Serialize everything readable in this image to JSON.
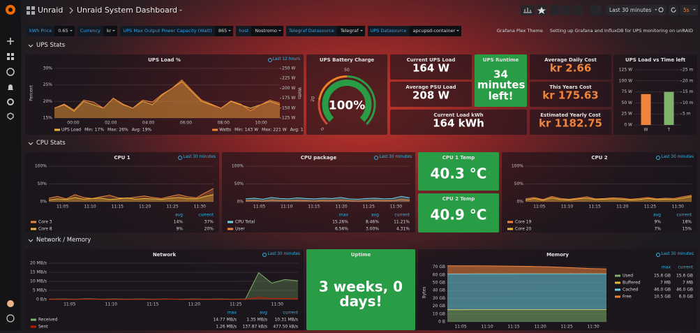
{
  "header": {
    "folder": "Unraid",
    "title": "Unraid System Dashboard",
    "time_range": "Last 30 minutes",
    "refresh": "5s"
  },
  "variables": [
    {
      "label": "kWh Price",
      "value": "0.65"
    },
    {
      "label": "Currency",
      "value": "kr"
    },
    {
      "label": "UPS Max Output Power Capacity (Watt)",
      "value": "865"
    },
    {
      "label": "host",
      "value": "Nostromo"
    },
    {
      "label": "Telegraf Datasource",
      "value": "Telegraf"
    },
    {
      "label": "UPS Datasource",
      "value": "apcupsd-container"
    }
  ],
  "links": [
    "Grafana Plex Theme",
    "Setting up Grafana and InfluxDB for UPS monitoring on unRAID"
  ],
  "rows": [
    "UPS Stats",
    "CPU Stats",
    "Network / Memory"
  ],
  "panels": {
    "ups_load": {
      "title": "UPS Load %",
      "info": "Last 12 hours",
      "y_label": "Percent",
      "y2_label": "Watts",
      "fill": true,
      "ylim": [
        15,
        30
      ],
      "yticks": [
        {
          "value": 30,
          "label": "30%"
        },
        {
          "value": 25,
          "label": "25%"
        },
        {
          "value": 20,
          "label": "20%"
        },
        {
          "value": 15,
          "label": "15%"
        }
      ],
      "y2lim": [
        125,
        250
      ],
      "y2ticks": [
        {
          "value": 250,
          "label": "250 W"
        },
        {
          "value": 225,
          "label": "225 W"
        },
        {
          "value": 200,
          "label": "200 W"
        },
        {
          "value": 175,
          "label": "175 W"
        },
        {
          "value": 150,
          "label": "150 W"
        },
        {
          "value": 125,
          "label": "125 W"
        }
      ],
      "xticks": [
        "00:00",
        "02:00",
        "04:00",
        "06:00",
        "08:00",
        "10:00"
      ],
      "series": [
        {
          "name": "UPS Load",
          "color": "#eab839",
          "stats": [
            "Min: 17%",
            "Max: 26%",
            "Avg: 19%"
          ],
          "values": [
            18,
            19,
            17,
            20,
            19,
            18,
            21,
            19,
            18,
            20,
            19,
            22,
            24,
            26,
            23,
            20,
            19,
            18,
            20,
            19,
            18,
            19,
            20,
            19
          ]
        },
        {
          "name": "Watts",
          "color": "#ef843c",
          "axis": "y2",
          "stats": [
            "Min: 143 W",
            "Max: 221 W",
            "Avg: 167 W"
          ],
          "values": [
            150,
            160,
            145,
            170,
            165,
            150,
            175,
            160,
            150,
            170,
            165,
            185,
            200,
            221,
            195,
            170,
            160,
            150,
            168,
            160,
            143,
            158,
            170,
            162
          ]
        }
      ]
    },
    "battery": {
      "title": "UPS Battery Charge",
      "min": 0,
      "max": 100,
      "value": 100,
      "value_label": "100%",
      "ticks": [
        0,
        20,
        50
      ],
      "threshold_colors": [
        "#d44a3a",
        "#ed8128",
        "#299c46"
      ]
    },
    "current_load": {
      "title": "Current UPS Load",
      "value": "164 W",
      "color": "#ffffff"
    },
    "avg_psu": {
      "title": "Average PSU Load",
      "value": "208 W",
      "color": "#ffffff"
    },
    "runtime": {
      "title": "UPS Runtime",
      "value": "34 minutes left!",
      "color": "#ffffff",
      "background": "#299c46"
    },
    "load_kwh": {
      "title": "Current Load kWh",
      "value": "164 kWh",
      "color": "#ffffff"
    },
    "daily_cost": {
      "title": "Average Daily Cost",
      "value": "kr  2.66",
      "color": "#ef843c"
    },
    "year_cost": {
      "title": "This Years Cost",
      "value": "kr  175.63",
      "color": "#ef843c"
    },
    "est_cost": {
      "title": "Estimated Yearly Cost",
      "value": "kr  1182.75",
      "color": "#ef843c"
    },
    "ups_vs_time": {
      "title": "UPS Load vs Time left",
      "ylim": [
        0,
        125
      ],
      "yticks": [
        {
          "value": 125,
          "label": "125 W"
        },
        {
          "value": 100,
          "label": "100 W"
        },
        {
          "value": 75,
          "label": "75 W"
        },
        {
          "value": 50,
          "label": "50 W"
        },
        {
          "value": 25,
          "label": "25 W"
        },
        {
          "value": 0,
          "label": "0 W"
        }
      ],
      "y2lim": [
        0,
        25
      ],
      "y2ticks": [
        {
          "value": 25,
          "label": "25 m"
        },
        {
          "value": 20,
          "label": "20 m"
        },
        {
          "value": 15,
          "label": "15 m"
        },
        {
          "value": 10,
          "label": "10 m"
        },
        {
          "value": 5,
          "label": "5 m"
        }
      ],
      "bars": [
        {
          "category": "W",
          "value": 70,
          "color": "#ef843c"
        },
        {
          "category": "T",
          "value": 15,
          "color": "#7eb26d",
          "axis": "y2"
        }
      ]
    },
    "cpu1": {
      "title": "CPU 1",
      "info": "Last 30 minutes",
      "fill": true,
      "ylim": [
        0,
        100
      ],
      "yticks": [
        {
          "value": 100,
          "label": "100%"
        },
        {
          "value": 50,
          "label": "50%"
        },
        {
          "value": 0,
          "label": "0%"
        }
      ],
      "xticks": [
        "11:05",
        "11:10",
        "11:15",
        "11:20",
        "11:25",
        "11:30"
      ],
      "legend_columns": [
        "avg",
        "current"
      ],
      "series": [
        {
          "name": "Core 3",
          "color": "#ef843c",
          "stats": [
            "14%",
            "37%"
          ],
          "values": [
            10,
            15,
            8,
            20,
            12,
            9,
            14,
            18,
            11,
            10,
            13,
            16,
            12,
            9,
            15,
            20,
            14,
            11,
            25,
            37
          ]
        },
        {
          "name": "Core 8",
          "color": "#eab839",
          "stats": [
            "9%",
            "20%"
          ],
          "values": [
            5,
            8,
            6,
            12,
            7,
            9,
            10,
            6,
            8,
            11,
            7,
            9,
            8,
            6,
            10,
            12,
            9,
            8,
            15,
            20
          ]
        }
      ]
    },
    "cpu_pkg": {
      "title": "CPU package",
      "info": "Last 30 minutes",
      "fill": true,
      "ylim": [
        0,
        100
      ],
      "yticks": [
        {
          "value": 100,
          "label": "100%"
        },
        {
          "value": 50,
          "label": "50%"
        },
        {
          "value": 0,
          "label": "0%"
        }
      ],
      "xticks": [
        "11:05",
        "11:10",
        "11:15",
        "11:20",
        "11:25",
        "11:30"
      ],
      "legend_columns": [
        "max",
        "avg",
        "current"
      ],
      "series": [
        {
          "name": "CPU Total",
          "color": "#6ed0e0",
          "stats": [
            "15.26%",
            "8.46%",
            "11.21%"
          ],
          "values": [
            8,
            10,
            7,
            12,
            9,
            8,
            11,
            9,
            8,
            10,
            9,
            12,
            8,
            7,
            9,
            10,
            8,
            9,
            15.26,
            11.21
          ]
        },
        {
          "name": "User",
          "color": "#ef843c",
          "stats": [
            "6.56%",
            "3.00%",
            "4.31%"
          ],
          "values": [
            3,
            4,
            2,
            5,
            3,
            3,
            4,
            3,
            2,
            4,
            3,
            5,
            3,
            2,
            3,
            4,
            3,
            3,
            6.56,
            4.31
          ]
        }
      ]
    },
    "cpu1_temp": {
      "title": "CPU 1 Temp",
      "value": "40.3 °C",
      "color": "#ffffff",
      "background": "#299c46"
    },
    "cpu2_temp": {
      "title": "CPU 2 Temp",
      "value": "40.9 °C",
      "color": "#ffffff",
      "background": "#299c46"
    },
    "cpu2": {
      "title": "CPU 2",
      "info": "Last 30 minutes",
      "fill": true,
      "ylim": [
        0,
        100
      ],
      "yticks": [
        {
          "value": 100,
          "label": "100%"
        },
        {
          "value": 50,
          "label": "50%"
        },
        {
          "value": 0,
          "label": "0%"
        }
      ],
      "xticks": [
        "11:05",
        "11:10",
        "11:15",
        "11:20",
        "11:25",
        "11:30"
      ],
      "legend_columns": [
        "avg",
        "current"
      ],
      "series": [
        {
          "name": "Core 19",
          "color": "#ef843c",
          "stats": [
            "9%",
            "18%"
          ],
          "values": [
            8,
            12,
            6,
            15,
            9,
            7,
            10,
            14,
            8,
            9,
            11,
            10,
            7,
            9,
            12,
            8,
            10,
            9,
            14,
            18
          ]
        },
        {
          "name": "Core 20",
          "color": "#eab839",
          "stats": [
            "7%",
            "15%"
          ],
          "values": [
            5,
            9,
            4,
            11,
            6,
            5,
            8,
            10,
            6,
            7,
            8,
            7,
            5,
            6,
            9,
            6,
            7,
            6,
            10,
            15
          ]
        }
      ]
    },
    "network": {
      "title": "Network",
      "info": "Last 30 minutes",
      "fill": true,
      "ylim": [
        0,
        20
      ],
      "yticks": [
        {
          "value": 20,
          "label": "20 MB/s"
        },
        {
          "value": 15,
          "label": "15 MB/s"
        },
        {
          "value": 10,
          "label": "10 MB/s"
        },
        {
          "value": 5,
          "label": "5 MB/s"
        },
        {
          "value": 0,
          "label": "0 B/s"
        }
      ],
      "xticks": [
        "11:05",
        "11:10",
        "11:15",
        "11:20",
        "11:25",
        "11:30"
      ],
      "legend_columns": [
        "max",
        "avg",
        "current"
      ],
      "series": [
        {
          "name": "Received",
          "color": "#7eb26d",
          "stats": [
            "14.77 MB/s",
            "1.35 MB/s",
            "10.31 MB/s"
          ],
          "values": [
            0.2,
            0.3,
            0.2,
            0.4,
            0.2,
            0.3,
            0.2,
            0.3,
            0.2,
            0.3,
            0.2,
            0.3,
            0.2,
            0.3,
            0.2,
            0.3,
            14.77,
            9,
            11,
            10.31
          ]
        },
        {
          "name": "Sent",
          "color": "#bf1b00",
          "stats": [
            "1.26 MB/s",
            "137.87 kB/s",
            "477.50 kB/s"
          ],
          "values": [
            0.1,
            0.1,
            0.1,
            0.2,
            0.1,
            0.1,
            0.1,
            0.1,
            0.1,
            0.2,
            0.1,
            0.1,
            0.1,
            0.1,
            0.1,
            0.1,
            1.26,
            0.5,
            0.6,
            0.48
          ]
        }
      ]
    },
    "uptime": {
      "title": "Uptime",
      "value": "3 weeks, 0 days!",
      "color": "#ffffff",
      "background": "#299c46"
    },
    "memory": {
      "title": "Memory",
      "info": "Last 30 minutes",
      "y_label": "Bytes",
      "fill": true,
      "stack": true,
      "ylim": [
        0,
        75
      ],
      "yticks": [
        {
          "value": 70,
          "label": "70 GB"
        },
        {
          "value": 60,
          "label": "60 GB"
        },
        {
          "value": 50,
          "label": "50 GB"
        },
        {
          "value": 40,
          "label": "40 GB"
        },
        {
          "value": 30,
          "label": "30 GB"
        },
        {
          "value": 20,
          "label": "20 GB"
        },
        {
          "value": 10,
          "label": "10 GB"
        },
        {
          "value": 0,
          "label": "0 B"
        }
      ],
      "xticks": [
        "11:05",
        "11:10",
        "11:15",
        "11:20",
        "11:25",
        "11:30"
      ],
      "legend_columns": [
        "max",
        "current"
      ],
      "legend_right": true,
      "series": [
        {
          "name": "Used",
          "color": "#7eb26d",
          "stats": [
            "15.6 GB",
            "15.6 GB"
          ],
          "values": [
            15.5,
            15.5,
            15.6,
            15.6,
            15.6,
            15.6,
            15.6,
            15.6,
            15.6,
            15.6,
            15.6,
            15.6
          ]
        },
        {
          "name": "Buffered",
          "color": "#eab839",
          "stats": [
            "7 MB",
            "7 MB"
          ],
          "values": [
            0.007,
            0.007,
            0.007,
            0.007,
            0.007,
            0.007,
            0.007,
            0.007,
            0.007,
            0.007,
            0.007,
            0.007
          ]
        },
        {
          "name": "Cached",
          "color": "#6ed0e0",
          "stats": [
            "46.0 GB",
            "46.0 GB"
          ],
          "values": [
            45.8,
            45.8,
            45.9,
            45.9,
            45.9,
            46.0,
            46.0,
            46.0,
            46.0,
            46.0,
            46.0,
            46.0
          ]
        },
        {
          "name": "Free",
          "color": "#ef843c",
          "stats": [
            "10.5 GB",
            "6.0 GB"
          ],
          "values": [
            10.5,
            10.4,
            10.2,
            10.0,
            9.8,
            9.5,
            9.2,
            8.8,
            8.0,
            7.2,
            6.5,
            6.0
          ]
        }
      ]
    }
  }
}
